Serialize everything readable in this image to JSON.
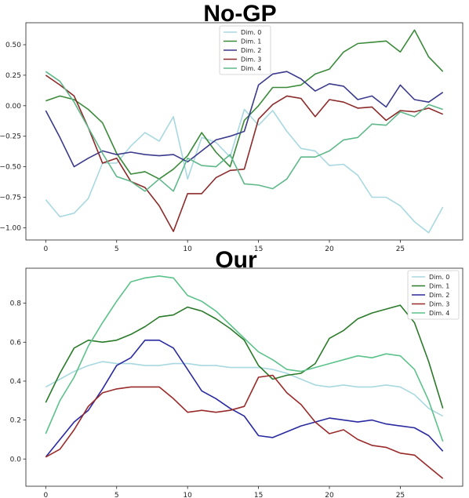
{
  "chart_data": [
    {
      "type": "line",
      "title": "No-GP",
      "x": [
        0,
        1,
        2,
        3,
        4,
        5,
        6,
        7,
        8,
        9,
        10,
        11,
        12,
        13,
        14,
        15,
        16,
        17,
        18,
        19,
        20,
        21,
        22,
        23,
        24,
        25,
        26,
        27,
        28
      ],
      "xlim": [
        -1.4,
        29.4
      ],
      "ylim": [
        -1.1,
        0.68
      ],
      "xticks": [
        0,
        5,
        10,
        15,
        20,
        25
      ],
      "yticks": [
        0.5,
        0.25,
        0.0,
        -0.25,
        -0.5,
        -0.75,
        -1.0
      ],
      "ytick_labels": [
        "0.50",
        "0.25",
        "0.00",
        "−0.25",
        "−0.50",
        "−0.75",
        "−1.00"
      ],
      "legend_position": "top-center",
      "series": [
        {
          "name": "Dim. 0",
          "color": "#a8d8e0",
          "values": [
            -0.77,
            -0.91,
            -0.88,
            -0.76,
            -0.47,
            -0.47,
            -0.33,
            -0.22,
            -0.29,
            -0.09,
            -0.6,
            -0.26,
            -0.3,
            -0.42,
            -0.03,
            -0.16,
            -0.04,
            -0.21,
            -0.35,
            -0.37,
            -0.49,
            -0.48,
            -0.57,
            -0.75,
            -0.75,
            -0.82,
            -0.95,
            -1.04,
            -0.83
          ]
        },
        {
          "name": "Dim. 1",
          "color": "#3a8a3a",
          "values": [
            0.04,
            0.08,
            0.05,
            -0.03,
            -0.14,
            -0.39,
            -0.56,
            -0.54,
            -0.6,
            -0.52,
            -0.41,
            -0.22,
            -0.38,
            -0.5,
            -0.12,
            0.0,
            0.15,
            0.15,
            0.17,
            0.26,
            0.3,
            0.44,
            0.51,
            0.52,
            0.53,
            0.44,
            0.62,
            0.4,
            0.28
          ]
        },
        {
          "name": "Dim. 2",
          "color": "#3b3a8c",
          "values": [
            -0.04,
            -0.26,
            -0.5,
            -0.43,
            -0.37,
            -0.4,
            -0.38,
            -0.4,
            -0.41,
            -0.4,
            -0.46,
            -0.37,
            -0.28,
            -0.25,
            -0.21,
            0.17,
            0.26,
            0.28,
            0.22,
            0.12,
            0.18,
            0.16,
            0.05,
            0.08,
            -0.01,
            0.17,
            0.05,
            0.03,
            0.11
          ]
        },
        {
          "name": "Dim. 3",
          "color": "#8c2a2a",
          "values": [
            0.25,
            0.17,
            0.08,
            -0.18,
            -0.47,
            -0.43,
            -0.62,
            -0.67,
            -0.82,
            -1.03,
            -0.72,
            -0.72,
            -0.59,
            -0.53,
            -0.52,
            -0.11,
            0.01,
            0.08,
            0.06,
            -0.09,
            0.05,
            0.03,
            -0.02,
            -0.01,
            -0.12,
            -0.04,
            -0.05,
            -0.02,
            -0.07
          ]
        },
        {
          "name": "Dim. 4",
          "color": "#5fb88a",
          "values": [
            0.28,
            0.2,
            0.03,
            -0.18,
            -0.39,
            -0.58,
            -0.62,
            -0.7,
            -0.6,
            -0.7,
            -0.43,
            -0.49,
            -0.5,
            -0.4,
            -0.64,
            -0.65,
            -0.68,
            -0.6,
            -0.42,
            -0.42,
            -0.37,
            -0.28,
            -0.26,
            -0.15,
            -0.16,
            -0.05,
            -0.09,
            0.01,
            -0.03
          ]
        }
      ]
    },
    {
      "type": "line",
      "title": "Our",
      "x": [
        0,
        1,
        2,
        3,
        4,
        5,
        6,
        7,
        8,
        9,
        10,
        11,
        12,
        13,
        14,
        15,
        16,
        17,
        18,
        19,
        20,
        21,
        22,
        23,
        24,
        25,
        26,
        27,
        28
      ],
      "xlim": [
        -1.4,
        29.4
      ],
      "ylim": [
        -0.14,
        0.98
      ],
      "xticks": [
        0,
        5,
        10,
        15,
        20,
        25
      ],
      "yticks": [
        0.8,
        0.6,
        0.4,
        0.2,
        0.0
      ],
      "ytick_labels": [
        "0.8",
        "0.6",
        "0.4",
        "0.2",
        "0.0"
      ],
      "legend_position": "top-right",
      "series": [
        {
          "name": "Dim. 0",
          "color": "#a8d8e0",
          "values": [
            0.37,
            0.41,
            0.45,
            0.48,
            0.5,
            0.49,
            0.49,
            0.48,
            0.48,
            0.49,
            0.49,
            0.48,
            0.48,
            0.47,
            0.47,
            0.47,
            0.46,
            0.44,
            0.41,
            0.38,
            0.37,
            0.38,
            0.37,
            0.37,
            0.38,
            0.37,
            0.33,
            0.26,
            0.22
          ]
        },
        {
          "name": "Dim. 1",
          "color": "#2a7a2a",
          "values": [
            0.29,
            0.44,
            0.57,
            0.61,
            0.6,
            0.61,
            0.64,
            0.68,
            0.73,
            0.74,
            0.78,
            0.76,
            0.72,
            0.67,
            0.61,
            0.48,
            0.41,
            0.43,
            0.44,
            0.49,
            0.62,
            0.66,
            0.72,
            0.75,
            0.77,
            0.79,
            0.7,
            0.5,
            0.26
          ]
        },
        {
          "name": "Dim. 2",
          "color": "#2a2aa0",
          "values": [
            0.01,
            0.1,
            0.19,
            0.25,
            0.36,
            0.48,
            0.52,
            0.61,
            0.61,
            0.57,
            0.46,
            0.35,
            0.31,
            0.26,
            0.22,
            0.12,
            0.11,
            0.14,
            0.17,
            0.19,
            0.21,
            0.2,
            0.19,
            0.2,
            0.18,
            0.17,
            0.16,
            0.12,
            0.04
          ]
        },
        {
          "name": "Dim. 3",
          "color": "#9a2a2a",
          "values": [
            0.01,
            0.05,
            0.15,
            0.27,
            0.34,
            0.36,
            0.37,
            0.37,
            0.37,
            0.31,
            0.24,
            0.25,
            0.24,
            0.25,
            0.27,
            0.42,
            0.43,
            0.34,
            0.28,
            0.19,
            0.13,
            0.15,
            0.1,
            0.07,
            0.06,
            0.03,
            0.02,
            -0.04,
            -0.1
          ]
        },
        {
          "name": "Dim. 4",
          "color": "#5cc28a",
          "values": [
            0.13,
            0.3,
            0.42,
            0.58,
            0.7,
            0.81,
            0.91,
            0.93,
            0.94,
            0.93,
            0.84,
            0.81,
            0.76,
            0.69,
            0.62,
            0.55,
            0.51,
            0.46,
            0.45,
            0.47,
            0.49,
            0.51,
            0.53,
            0.52,
            0.54,
            0.53,
            0.46,
            0.3,
            0.09
          ]
        }
      ]
    }
  ]
}
